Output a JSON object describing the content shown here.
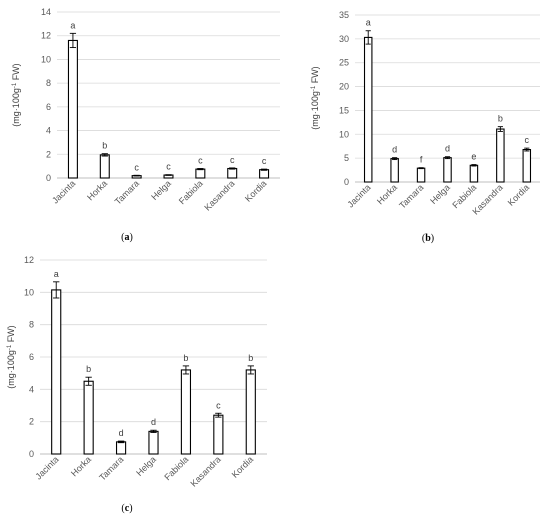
{
  "chart_data": [
    {
      "type": "bar",
      "panel_label": "(a)",
      "ylabel_parts": [
        "(mg·100g",
        "-1",
        " FW)"
      ],
      "ylim": [
        0,
        14
      ],
      "yticks": [
        0,
        2,
        4,
        6,
        8,
        10,
        12,
        14
      ],
      "categories": [
        "Jacinta",
        "Horka",
        "Tamara",
        "Helga",
        "Fabiola",
        "Kasandra",
        "Kordia"
      ],
      "values": [
        11.6,
        1.95,
        0.2,
        0.25,
        0.75,
        0.8,
        0.7
      ],
      "errors": [
        0.6,
        0.1,
        0.03,
        0.03,
        0.05,
        0.05,
        0.05
      ],
      "significance": [
        "a",
        "b",
        "c",
        "c",
        "c",
        "c",
        "c"
      ],
      "grid": "horizontal"
    },
    {
      "type": "bar",
      "panel_label": "(b)",
      "ylabel_parts": [
        "(mg·100g",
        "-1",
        " FW)"
      ],
      "ylim": [
        0,
        35
      ],
      "yticks": [
        0,
        5,
        10,
        15,
        20,
        25,
        30,
        35
      ],
      "categories": [
        "Jacinta",
        "Horka",
        "Tamara",
        "Helga",
        "Fabiola",
        "Kasandra",
        "Kordia"
      ],
      "values": [
        30.3,
        4.9,
        2.9,
        5.1,
        3.5,
        11.1,
        6.8
      ],
      "errors": [
        1.4,
        0.2,
        0.1,
        0.2,
        0.15,
        0.5,
        0.3
      ],
      "significance": [
        "a",
        "d",
        "f",
        "d",
        "e",
        "b",
        "c"
      ],
      "grid": "horizontal"
    },
    {
      "type": "bar",
      "panel_label": "(c)",
      "ylabel_parts": [
        "(mg·100g",
        "-1",
        " FW)"
      ],
      "ylim": [
        0,
        12
      ],
      "yticks": [
        0,
        2,
        4,
        6,
        8,
        10,
        12
      ],
      "categories": [
        "Jacinta",
        "Horka",
        "Tamara",
        "Helga",
        "Fabiola",
        "Kasandra",
        "Kordia"
      ],
      "values": [
        10.15,
        4.5,
        0.75,
        1.4,
        5.2,
        2.4,
        5.2
      ],
      "errors": [
        0.5,
        0.25,
        0.05,
        0.07,
        0.25,
        0.12,
        0.25
      ],
      "significance": [
        "a",
        "b",
        "d",
        "d",
        "b",
        "c",
        "b"
      ],
      "grid": "horizontal"
    }
  ]
}
